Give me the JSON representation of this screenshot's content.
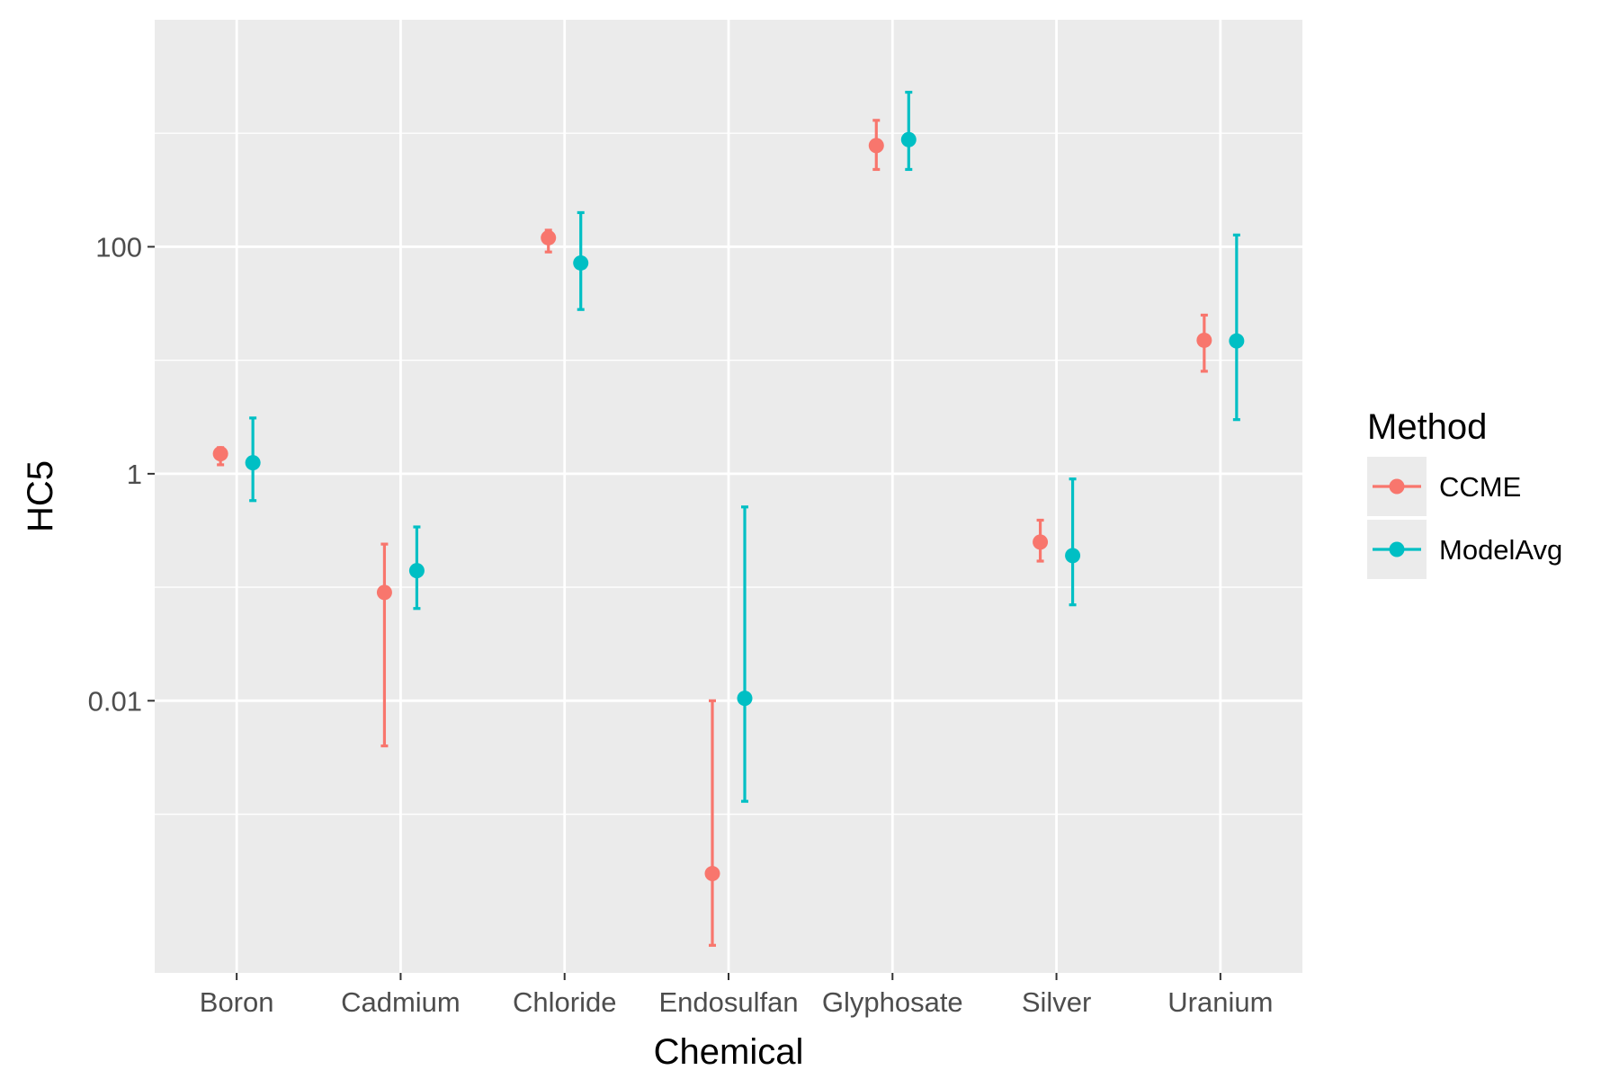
{
  "chart_data": {
    "type": "scatter",
    "title": "",
    "xlabel": "Chemical",
    "ylabel": "HC5",
    "y_scale": "log10",
    "ylim": [
      4e-05,
      10000
    ],
    "y_ticks": [
      0.01,
      1,
      100
    ],
    "y_tick_labels": [
      "0.01",
      "1",
      "100"
    ],
    "grid": true,
    "legend_position": "right",
    "legend_title": "Method",
    "categories": [
      "Boron",
      "Cadmium",
      "Chloride",
      "Endosulfan",
      "Glyphosate",
      "Silver",
      "Uranium"
    ],
    "series": [
      {
        "name": "CCME",
        "color": "#F8766D",
        "values": [
          1.5,
          0.09,
          120,
          0.0003,
          780,
          0.25,
          15
        ],
        "lower": [
          1.2,
          0.004,
          90,
          7e-05,
          480,
          0.17,
          8
        ],
        "upper": [
          1.7,
          0.24,
          140,
          0.01,
          1300,
          0.39,
          25
        ]
      },
      {
        "name": "ModelAvg",
        "color": "#00BFC4",
        "values": [
          1.25,
          0.14,
          72,
          0.0105,
          880,
          0.19,
          14.8
        ],
        "lower": [
          0.58,
          0.065,
          28,
          0.0013,
          480,
          0.07,
          3
        ],
        "upper": [
          3.1,
          0.34,
          200,
          0.51,
          2300,
          0.9,
          127
        ]
      }
    ]
  }
}
